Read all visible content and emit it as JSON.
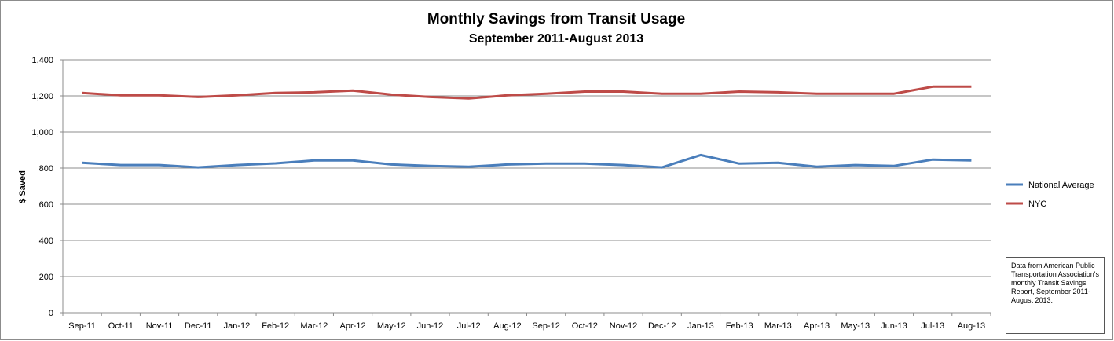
{
  "chart_data": {
    "type": "line",
    "title": "Monthly Savings from Transit Usage",
    "subtitle": "September 2011-August 2013",
    "ylabel": "$ Saved",
    "xlabel": "",
    "ylim": [
      0,
      1400
    ],
    "yticks": [
      "0",
      "200",
      "400",
      "600",
      "800",
      "1,000",
      "1,200",
      "1,400"
    ],
    "ytick_values": [
      0,
      200,
      400,
      600,
      800,
      1000,
      1200,
      1400
    ],
    "grid": true,
    "legend_position": "right",
    "categories": [
      "Sep-11",
      "Oct-11",
      "Nov-11",
      "Dec-11",
      "Jan-12",
      "Feb-12",
      "Mar-12",
      "Apr-12",
      "May-12",
      "Jun-12",
      "Jul-12",
      "Aug-12",
      "Sep-12",
      "Oct-12",
      "Nov-12",
      "Dec-12",
      "Jan-13",
      "Feb-13",
      "Mar-13",
      "Apr-13",
      "May-13",
      "Jun-13",
      "Jul-13",
      "Aug-13"
    ],
    "series": [
      {
        "name": "National Average",
        "color": "#4a7ebb",
        "values": [
          829,
          817,
          817,
          804,
          817,
          826,
          842,
          842,
          820,
          812,
          808,
          820,
          825,
          825,
          817,
          804,
          872,
          825,
          829,
          808,
          817,
          812,
          847,
          842
        ]
      },
      {
        "name": "NYC",
        "color": "#be4b48",
        "values": [
          1216,
          1203,
          1203,
          1194,
          1203,
          1216,
          1220,
          1229,
          1207,
          1194,
          1186,
          1203,
          1212,
          1224,
          1224,
          1212,
          1212,
          1224,
          1220,
          1212,
          1212,
          1212,
          1251,
          1251
        ]
      }
    ]
  },
  "note": "Data from American Public Transportation Association's monthly Transit Savings Report, September 2011-August 2013."
}
